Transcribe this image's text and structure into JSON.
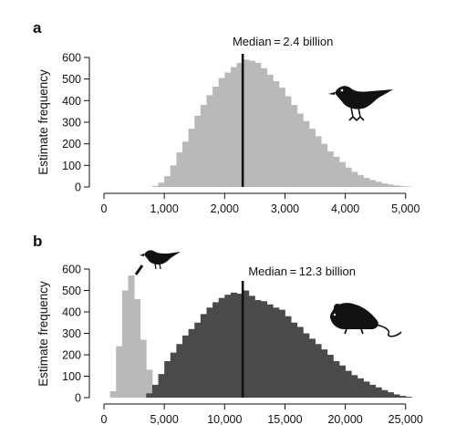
{
  "chart_data": [
    {
      "type": "bar",
      "panel_label": "a",
      "ylabel": "Estimate frequency",
      "xlabel": "",
      "xlim": [
        0,
        5200
      ],
      "ylim": [
        0,
        600
      ],
      "x_ticks": [
        "0",
        "1,000",
        "2,000",
        "3,000",
        "4,000",
        "5,000"
      ],
      "x_tick_values": [
        0,
        1000,
        2000,
        3000,
        4000,
        5000
      ],
      "y_ticks": [
        "0",
        "100",
        "200",
        "300",
        "400",
        "500",
        "600"
      ],
      "y_tick_values": [
        0,
        100,
        200,
        300,
        400,
        500,
        600
      ],
      "median_label": "Median = 2.4 billion",
      "median_x": 2300,
      "icon": "bird-icon",
      "bin_width": 100,
      "series": [
        {
          "color": "#b9b9b9",
          "bin_starts": [
            800,
            900,
            1000,
            1100,
            1200,
            1300,
            1400,
            1500,
            1600,
            1700,
            1800,
            1900,
            2000,
            2100,
            2200,
            2300,
            2400,
            2500,
            2600,
            2700,
            2800,
            2900,
            3000,
            3100,
            3200,
            3300,
            3400,
            3500,
            3600,
            3700,
            3800,
            3900,
            4000,
            4100,
            4200,
            4300,
            4400,
            4500,
            4600,
            4700,
            4800,
            4900,
            5000
          ],
          "values": [
            5,
            20,
            50,
            100,
            160,
            210,
            270,
            330,
            380,
            425,
            465,
            505,
            530,
            555,
            575,
            590,
            585,
            575,
            550,
            520,
            490,
            460,
            420,
            380,
            340,
            305,
            270,
            235,
            200,
            165,
            140,
            115,
            90,
            70,
            55,
            42,
            32,
            24,
            16,
            11,
            7,
            4,
            2
          ]
        }
      ]
    },
    {
      "type": "bar",
      "panel_label": "b",
      "ylabel": "Estimate frequency",
      "xlabel": "",
      "xlim": [
        0,
        26000
      ],
      "ylim": [
        0,
        600
      ],
      "x_ticks": [
        "0",
        "5,000",
        "10,000",
        "15,000",
        "20,000",
        "25,000"
      ],
      "x_tick_values": [
        0,
        5000,
        10000,
        15000,
        20000,
        25000
      ],
      "y_ticks": [
        "0",
        "100",
        "200",
        "300",
        "400",
        "500",
        "600"
      ],
      "y_tick_values": [
        0,
        100,
        200,
        300,
        400,
        500,
        600
      ],
      "median_label": "Median = 12.3 billion",
      "median_x": 11500,
      "icons": [
        "bird-icon",
        "mouse-icon"
      ],
      "bin_width": 500,
      "series": [
        {
          "color": "#b9b9b9",
          "bin_starts": [
            500,
            1000,
            1500,
            2000,
            2500,
            3000,
            3500,
            4000,
            4500
          ],
          "values": [
            30,
            240,
            500,
            570,
            460,
            270,
            130,
            50,
            15
          ],
          "bin_width": 500
        },
        {
          "color": "#4a4a4a",
          "bin_starts": [
            3500,
            4000,
            4500,
            5000,
            5500,
            6000,
            6500,
            7000,
            7500,
            8000,
            8500,
            9000,
            9500,
            10000,
            10500,
            11000,
            11500,
            12000,
            12500,
            13000,
            13500,
            14000,
            14500,
            15000,
            15500,
            16000,
            16500,
            17000,
            17500,
            18000,
            18500,
            19000,
            19500,
            20000,
            20500,
            21000,
            21500,
            22000,
            22500,
            23000,
            23500,
            24000,
            24500,
            25000
          ],
          "values": [
            20,
            60,
            110,
            170,
            210,
            250,
            290,
            320,
            350,
            390,
            420,
            445,
            465,
            480,
            490,
            485,
            500,
            475,
            455,
            450,
            435,
            420,
            410,
            380,
            350,
            330,
            300,
            275,
            250,
            225,
            200,
            170,
            150,
            125,
            105,
            90,
            75,
            60,
            48,
            35,
            25,
            15,
            8,
            4
          ]
        }
      ]
    }
  ]
}
